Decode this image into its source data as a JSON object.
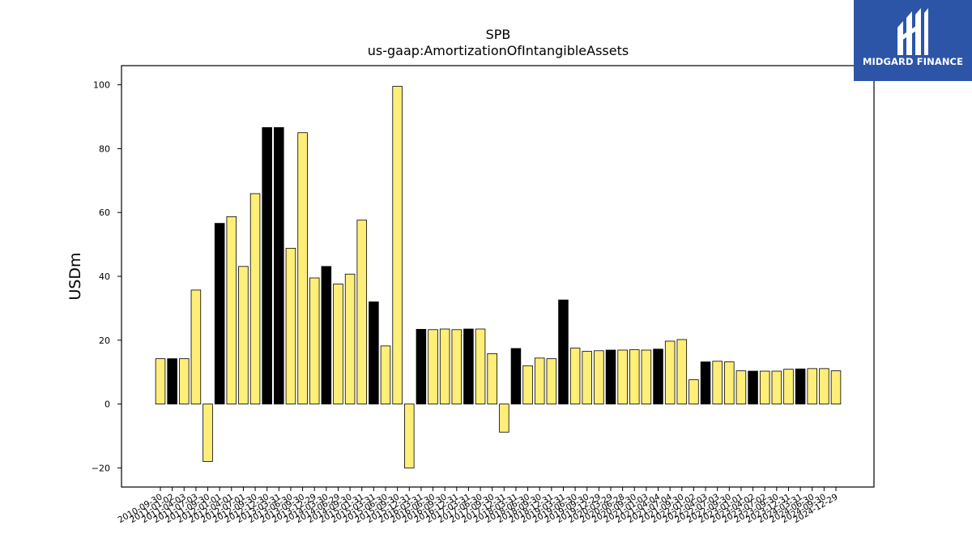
{
  "chart_data": {
    "type": "bar",
    "title": "SPB",
    "subtitle": "us-gaap:AmortizationOfIntangibleAssets",
    "xlabel": "",
    "ylabel": "USDm",
    "ylim": [
      -26,
      106
    ],
    "yticks": [
      -20,
      0,
      20,
      40,
      60,
      80,
      100
    ],
    "colors": {
      "highlight": "#000000",
      "default": "#ffee77",
      "edge": "#000000"
    },
    "categories": [
      "2010-09-30",
      "2011-01-02",
      "2011-04-03",
      "2011-07-03",
      "2011-09-30",
      "2012-01-01",
      "2012-04-01",
      "2012-07-01",
      "2012-09-30",
      "2012-12-30",
      "2013-03-31",
      "2013-06-30",
      "2013-09-30",
      "2013-12-29",
      "2014-03-30",
      "2014-06-29",
      "2014-09-30",
      "2015-01-31",
      "2015-03-31",
      "2015-06-30",
      "2015-09-30",
      "2015-12-31",
      "2016-03-31",
      "2016-06-30",
      "2016-09-30",
      "2016-12-31",
      "2017-03-31",
      "2017-06-30",
      "2017-09-30",
      "2017-12-31",
      "2018-03-31",
      "2018-06-30",
      "2018-09-30",
      "2018-12-31",
      "2019-03-31",
      "2019-06-30",
      "2019-09-30",
      "2019-12-29",
      "2020-03-29",
      "2020-06-28",
      "2020-09-30",
      "2021-01-03",
      "2021-04-04",
      "2021-07-04",
      "2021-09-30",
      "2022-01-02",
      "2022-04-03",
      "2022-07-03",
      "2022-09-30",
      "2023-01-01",
      "2023-04-02",
      "2023-07-02",
      "2023-09-30",
      "2023-12-31",
      "2024-03-31",
      "2024-06-30",
      "2024-09-30",
      "2024-12-29"
    ],
    "values": [
      14.2,
      14.2,
      14.2,
      35.7,
      -18.0,
      56.6,
      58.7,
      43.1,
      65.9,
      86.6,
      86.6,
      48.8,
      85.0,
      39.5,
      43.1,
      37.6,
      40.7,
      57.6,
      32.0,
      18.2,
      99.5,
      -20.0,
      23.4,
      23.3,
      23.5,
      23.3,
      23.5,
      23.5,
      15.8,
      -8.8,
      17.4,
      12.0,
      14.4,
      14.2,
      32.6,
      17.5,
      16.5,
      16.7,
      16.9,
      16.9,
      17.0,
      16.9,
      17.2,
      19.7,
      20.2,
      7.6,
      13.2,
      13.4,
      13.2,
      10.4,
      10.3,
      10.3,
      10.3,
      10.9,
      11.0,
      11.1,
      11.1,
      10.4
    ],
    "highlighted": [
      false,
      true,
      false,
      false,
      false,
      true,
      false,
      false,
      false,
      true,
      true,
      false,
      false,
      false,
      true,
      false,
      false,
      false,
      true,
      false,
      false,
      false,
      true,
      false,
      false,
      false,
      true,
      false,
      false,
      false,
      true,
      false,
      false,
      false,
      true,
      false,
      false,
      false,
      true,
      false,
      false,
      false,
      true,
      false,
      false,
      false,
      true,
      false,
      false,
      false,
      true,
      false,
      false,
      false,
      true,
      false,
      false,
      false
    ],
    "grid": false,
    "legend": "none"
  },
  "logo": {
    "text": "MIDGARD FINANCE",
    "color": "#2c55a8"
  }
}
